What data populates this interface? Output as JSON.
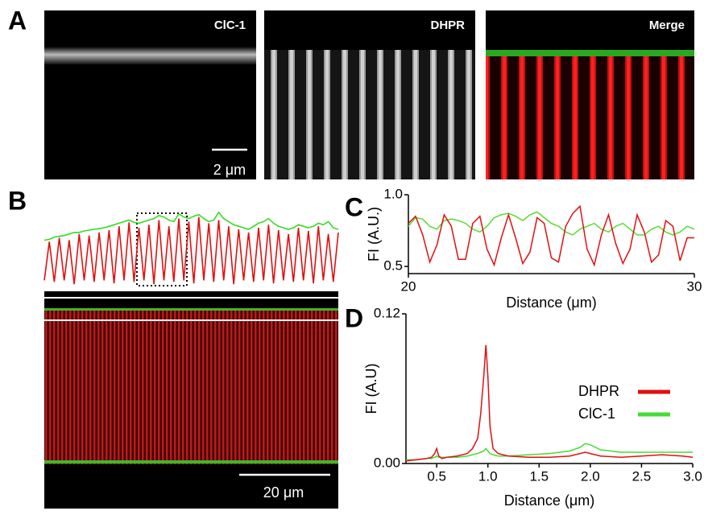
{
  "panels": {
    "A": {
      "label": "A",
      "images": [
        "ClC-1",
        "DHPR",
        "Merge"
      ],
      "scale_bar": "2 μm"
    },
    "B": {
      "label": "B",
      "scale_bar": "20 μm"
    }
  },
  "chart_data": [
    {
      "type": "line",
      "series": [
        {
          "color": "#33dd22",
          "values": [
            0.62,
            0.63,
            0.66,
            0.67,
            0.68,
            0.7,
            0.72,
            0.72,
            0.74,
            0.75,
            0.76,
            0.77,
            0.78,
            0.8,
            0.82,
            0.84,
            0.86,
            0.88,
            0.85,
            0.84,
            0.86,
            0.88,
            0.9,
            0.94,
            0.92,
            0.88,
            0.86,
            0.96,
            0.92,
            0.9,
            0.93,
            0.95,
            0.9,
            0.86,
            0.88,
            0.98,
            0.9,
            0.86,
            0.82,
            0.8,
            0.78,
            0.76,
            0.8,
            0.84,
            0.86,
            0.9,
            0.84,
            0.8,
            0.78,
            0.76,
            0.78,
            0.82,
            0.8,
            0.78,
            0.8,
            0.84,
            0.82,
            0.86,
            0.78,
            0.76
          ]
        },
        {
          "color": "#e01010",
          "values": [
            0.1,
            0.6,
            0.08,
            0.65,
            0.1,
            0.62,
            0.05,
            0.7,
            0.1,
            0.68,
            0.08,
            0.72,
            0.1,
            0.75,
            0.06,
            0.8,
            0.1,
            0.85,
            0.08,
            0.78,
            0.1,
            0.82,
            0.05,
            0.88,
            0.1,
            0.8,
            0.08,
            0.9,
            0.1,
            0.86,
            0.06,
            0.92,
            0.1,
            0.84,
            0.08,
            0.88,
            0.1,
            0.8,
            0.05,
            0.76,
            0.1,
            0.72,
            0.08,
            0.78,
            0.1,
            0.82,
            0.06,
            0.75,
            0.1,
            0.7,
            0.08,
            0.78,
            0.1,
            0.74,
            0.06,
            0.8,
            0.1,
            0.7,
            0.08,
            0.72
          ]
        }
      ]
    },
    {
      "type": "line",
      "label": "C",
      "ylabel": "FI (A.U.)",
      "xlabel": "Distance (μm)",
      "x": [
        20,
        20.25,
        20.5,
        20.75,
        21,
        21.25,
        21.5,
        21.75,
        22,
        22.25,
        22.5,
        22.75,
        23,
        23.25,
        23.5,
        23.75,
        24,
        24.25,
        24.5,
        24.75,
        25,
        25.25,
        25.5,
        25.75,
        26,
        26.25,
        26.5,
        26.75,
        27,
        27.25,
        27.5,
        27.75,
        28,
        28.25,
        28.5,
        28.75,
        29,
        29.25,
        29.5,
        29.75,
        30
      ],
      "series": [
        {
          "color": "#55dd33",
          "values": [
            0.78,
            0.84,
            0.83,
            0.78,
            0.76,
            0.82,
            0.83,
            0.82,
            0.8,
            0.76,
            0.74,
            0.78,
            0.84,
            0.86,
            0.87,
            0.85,
            0.82,
            0.86,
            0.88,
            0.84,
            0.8,
            0.78,
            0.74,
            0.72,
            0.76,
            0.78,
            0.8,
            0.76,
            0.74,
            0.78,
            0.8,
            0.76,
            0.72,
            0.72,
            0.76,
            0.78,
            0.74,
            0.72,
            0.74,
            0.78,
            0.76
          ]
        },
        {
          "color": "#e01010",
          "values": [
            0.8,
            0.85,
            0.72,
            0.53,
            0.65,
            0.86,
            0.78,
            0.55,
            0.55,
            0.8,
            0.85,
            0.62,
            0.51,
            0.7,
            0.86,
            0.7,
            0.52,
            0.6,
            0.84,
            0.8,
            0.56,
            0.53,
            0.78,
            0.87,
            0.92,
            0.62,
            0.51,
            0.72,
            0.86,
            0.66,
            0.52,
            0.62,
            0.86,
            0.74,
            0.53,
            0.58,
            0.82,
            0.78,
            0.54,
            0.7,
            0.7
          ]
        }
      ],
      "xlim": [
        20,
        30
      ],
      "xticks": [
        20,
        30
      ],
      "ylim": [
        0.45,
        1.0
      ],
      "yticks": [
        0.5,
        {
          "value": 1.0,
          "label": "1.0"
        }
      ]
    },
    {
      "type": "line",
      "label": "D",
      "ylabel": "FI (A.U)",
      "xlabel": "Distance (μm)",
      "legend": "right",
      "x": [
        0.2,
        0.3,
        0.4,
        0.45,
        0.48,
        0.5,
        0.52,
        0.55,
        0.6,
        0.7,
        0.8,
        0.85,
        0.9,
        0.93,
        0.96,
        0.98,
        1.0,
        1.02,
        1.05,
        1.1,
        1.2,
        1.4,
        1.6,
        1.8,
        1.9,
        1.95,
        2.0,
        2.1,
        2.3,
        2.5,
        2.7,
        2.9,
        3.0
      ],
      "series": [
        {
          "name": "DHPR",
          "color": "#e01010",
          "values": [
            0.002,
            0.003,
            0.004,
            0.005,
            0.008,
            0.012,
            0.006,
            0.004,
            0.005,
            0.006,
            0.008,
            0.012,
            0.02,
            0.04,
            0.07,
            0.095,
            0.07,
            0.03,
            0.012,
            0.008,
            0.006,
            0.005,
            0.005,
            0.006,
            0.008,
            0.009,
            0.008,
            0.006,
            0.005,
            0.006,
            0.007,
            0.006,
            0.005
          ]
        },
        {
          "name": "ClC-1",
          "color": "#44dd33",
          "values": [
            0.003,
            0.003,
            0.004,
            0.004,
            0.005,
            0.006,
            0.005,
            0.005,
            0.005,
            0.005,
            0.006,
            0.007,
            0.008,
            0.009,
            0.01,
            0.012,
            0.01,
            0.008,
            0.007,
            0.006,
            0.006,
            0.007,
            0.008,
            0.01,
            0.013,
            0.016,
            0.015,
            0.011,
            0.009,
            0.009,
            0.009,
            0.009,
            0.009
          ]
        }
      ],
      "xlim": [
        0.2,
        3.0
      ],
      "xticks": [
        0.5,
        {
          "value": 1,
          "label": "1.0"
        },
        1.5,
        {
          "value": 2,
          "label": "2.0"
        },
        2.5,
        {
          "value": 3,
          "label": "3.0"
        }
      ],
      "ylim": [
        0,
        0.12
      ],
      "yticks": [
        {
          "value": 0,
          "label": "0.00"
        },
        {
          "value": 0.12,
          "label": "0.12"
        }
      ]
    }
  ]
}
